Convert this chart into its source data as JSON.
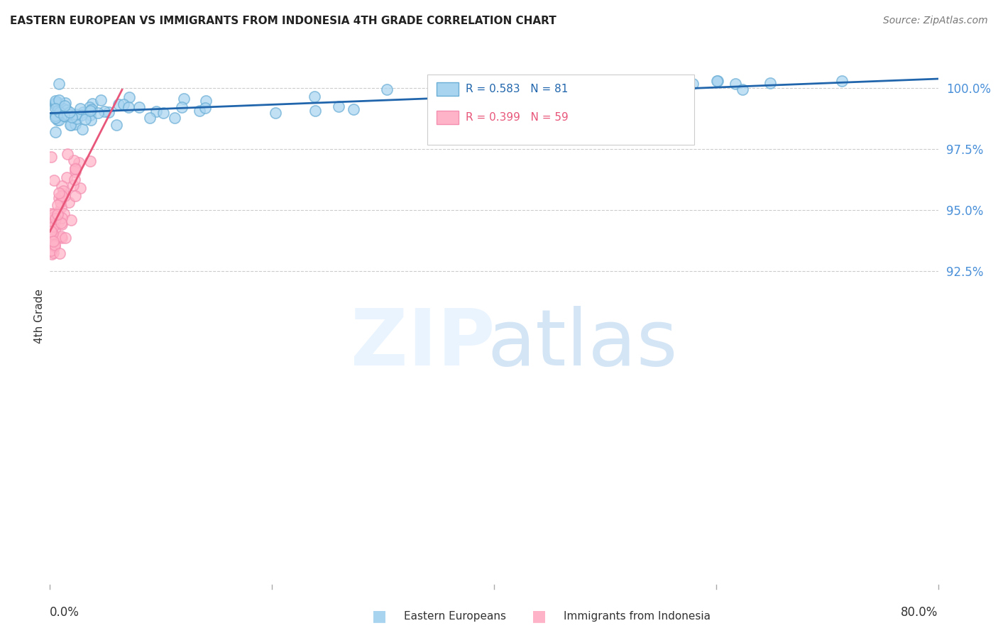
{
  "title": "EASTERN EUROPEAN VS IMMIGRANTS FROM INDONESIA 4TH GRADE CORRELATION CHART",
  "source": "Source: ZipAtlas.com",
  "ylabel": "4th Grade",
  "x_min": 0.0,
  "x_max": 80.0,
  "y_min": 79.5,
  "y_max": 101.8,
  "y_ticks": [
    92.5,
    95.0,
    97.5,
    100.0
  ],
  "y_tick_labels": [
    "92.5%",
    "95.0%",
    "97.5%",
    "100.0%"
  ],
  "legend1_label": "R = 0.583   N = 81",
  "legend2_label": "R = 0.399   N = 59",
  "blue_face_color": "#a8d4f0",
  "blue_edge_color": "#6aaed6",
  "pink_face_color": "#ffb3c8",
  "pink_edge_color": "#f48fb1",
  "blue_line_color": "#2166ac",
  "pink_line_color": "#e8567a",
  "grid_color": "#cccccc",
  "right_tick_color": "#4a90d9",
  "watermark_zip_color": "#ddeeff",
  "watermark_atlas_color": "#b8d4f0"
}
